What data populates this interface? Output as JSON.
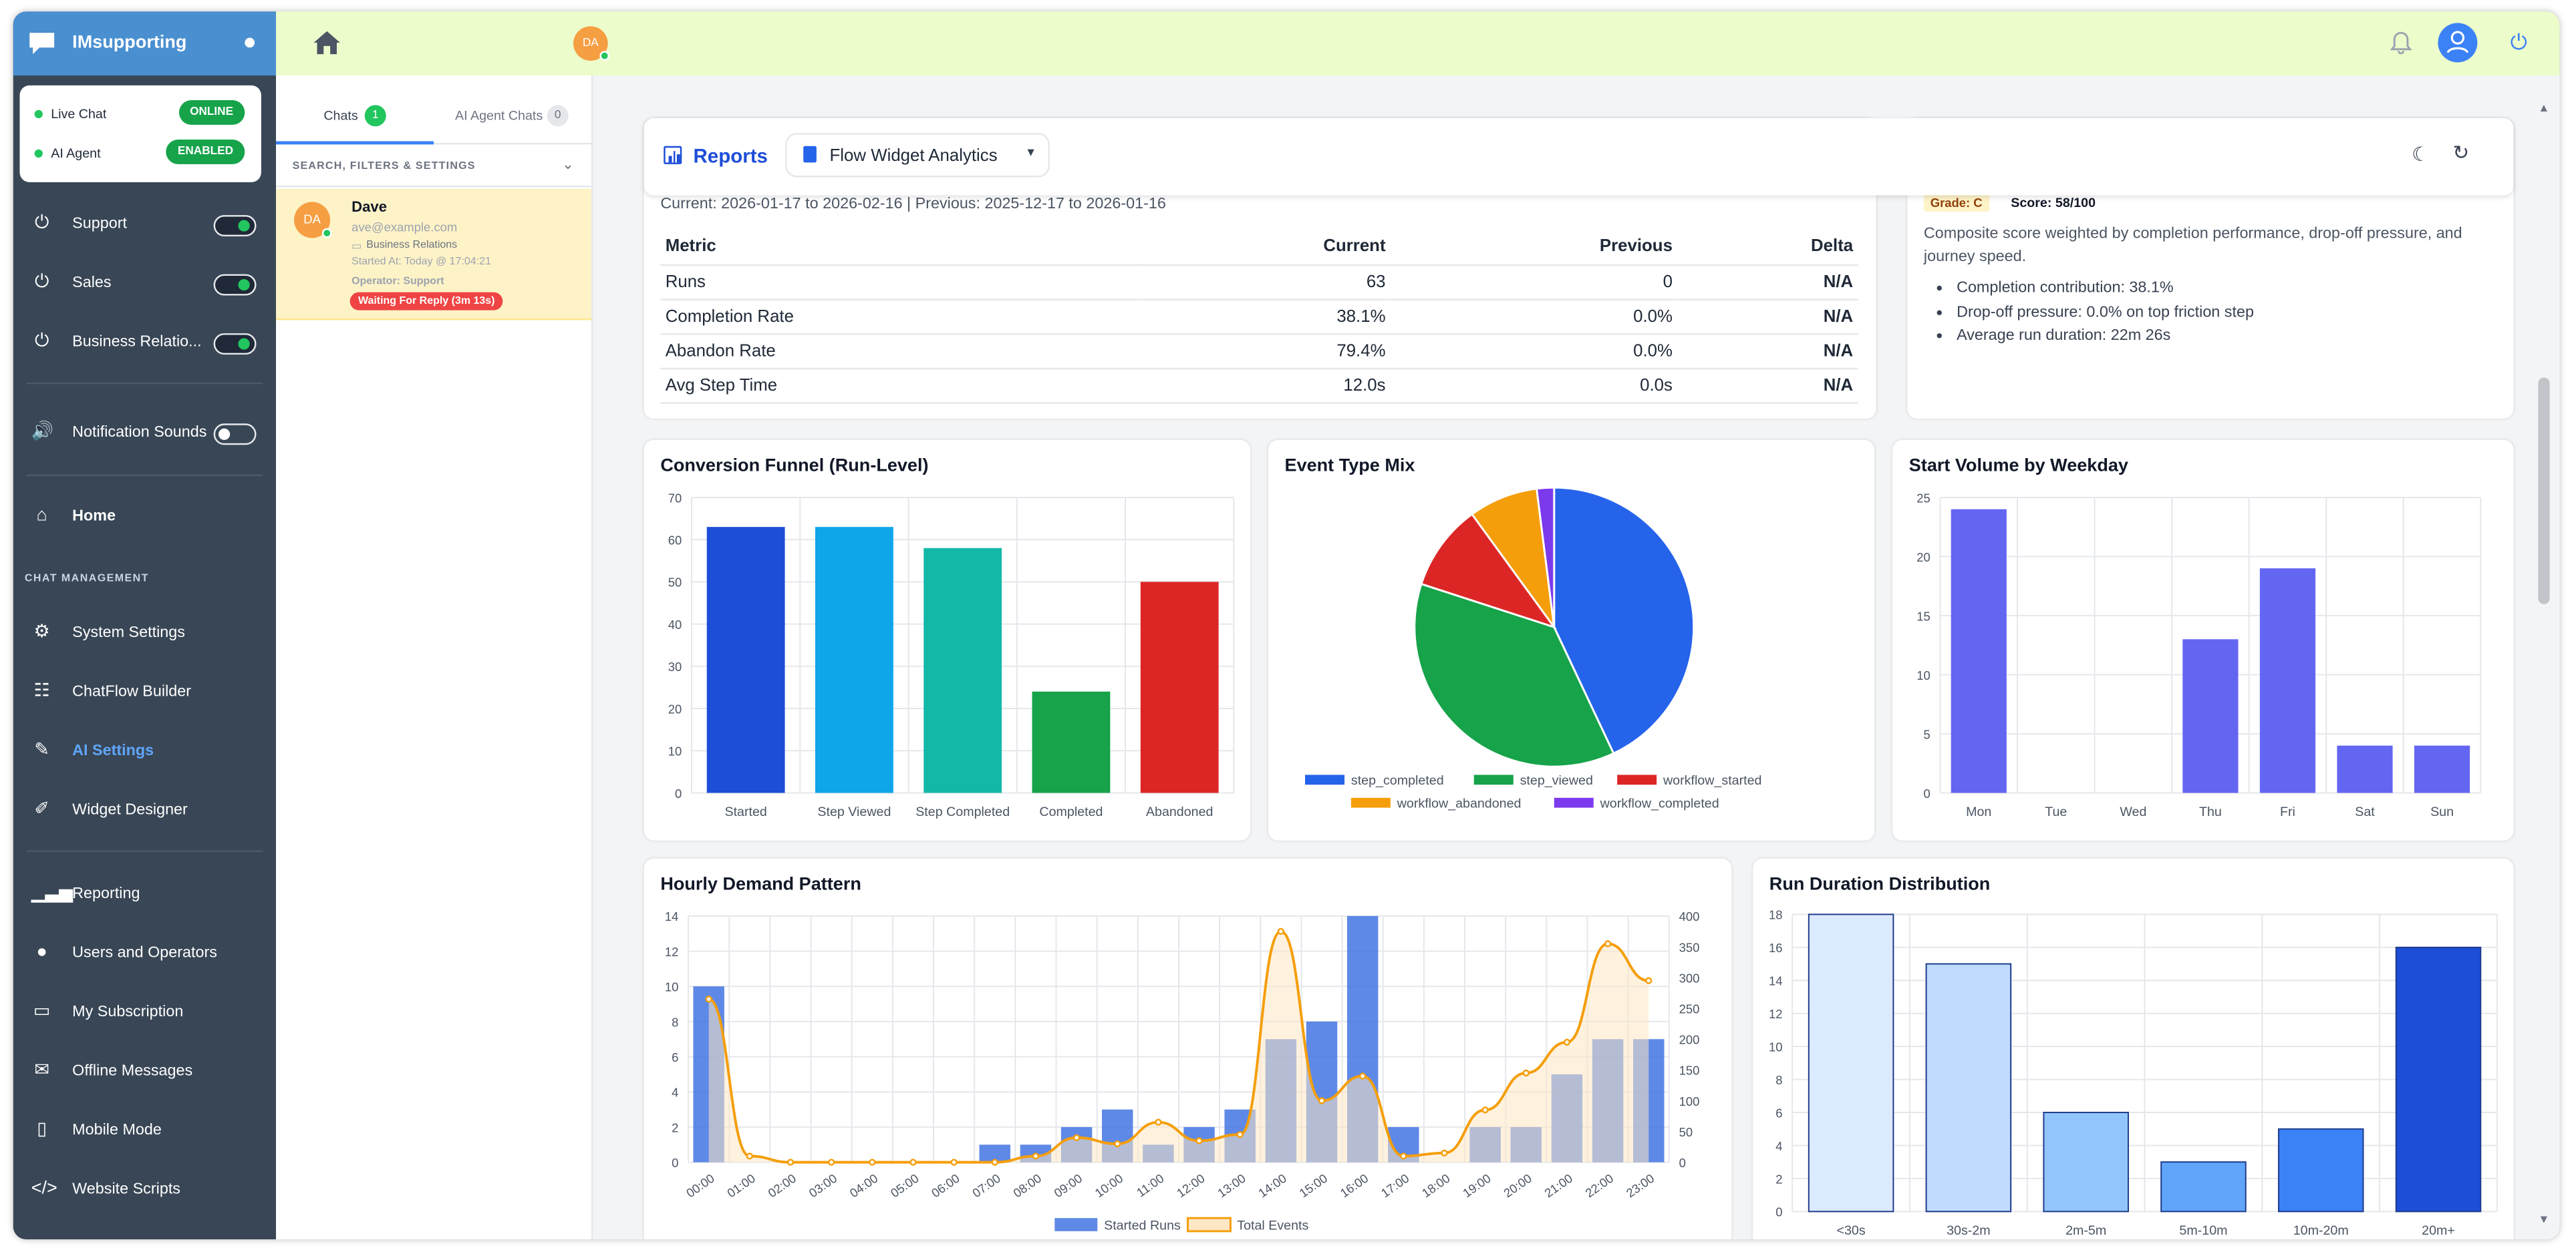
{
  "app": {
    "name": "IMsupporting"
  },
  "status": {
    "live_chat": {
      "label": "Live Chat",
      "badge": "ONLINE"
    },
    "ai_agent": {
      "label": "AI Agent",
      "badge": "ENABLED"
    }
  },
  "toggles": [
    {
      "label": "Support",
      "on": true
    },
    {
      "label": "Sales",
      "on": true
    },
    {
      "label": "Business Relatio...",
      "on": true
    }
  ],
  "notification": {
    "label": "Notification Sounds",
    "on": false
  },
  "nav": {
    "home": "Home",
    "section_label": "CHAT MANAGEMENT",
    "items": [
      "System Settings",
      "ChatFlow Builder",
      "AI Settings",
      "Widget Designer"
    ],
    "items2": [
      "Reporting",
      "Users and Operators",
      "My Subscription",
      "Offline Messages",
      "Mobile Mode",
      "Website Scripts"
    ]
  },
  "topbar": {
    "avatar": "DA"
  },
  "chats": {
    "tab_chats": "Chats",
    "tab_chats_count": "1",
    "tab_ai": "AI Agent Chats",
    "tab_ai_count": "0",
    "filters": "SEARCH, FILTERS & SETTINGS",
    "item": {
      "avatar": "DA",
      "name": "Dave",
      "email": "ave@example.com",
      "dept": "Business Relations",
      "started": "Started At: Today @ 17:04:21",
      "operator": "Operator: Support",
      "waiting": "Waiting For Reply (3m 13s)"
    }
  },
  "reports": {
    "title": "Reports",
    "dropdown": "Flow Widget Analytics",
    "period": "Current: 2026-01-17 to 2026-02-16 | Previous: 2025-12-17 to 2026-01-16",
    "table": {
      "headers": [
        "Metric",
        "Current",
        "Previous",
        "Delta"
      ],
      "rows": [
        [
          "Runs",
          "63",
          "0",
          "N/A"
        ],
        [
          "Completion Rate",
          "38.1%",
          "0.0%",
          "N/A"
        ],
        [
          "Abandon Rate",
          "79.4%",
          "0.0%",
          "N/A"
        ],
        [
          "Avg Step Time",
          "12.0s",
          "0.0s",
          "N/A"
        ]
      ]
    },
    "score": {
      "grade": "Grade: C",
      "score": "Score: 58/100",
      "description": "Composite score weighted by completion performance, drop-off pressure, and journey speed.",
      "bullets": [
        "Completion contribution: 38.1%",
        "Drop-off pressure: 0.0% on top friction step",
        "Average run duration: 22m 26s"
      ]
    }
  },
  "chart_data": [
    {
      "type": "bar",
      "title": "Conversion Funnel (Run-Level)",
      "categories": [
        "Started",
        "Step Viewed",
        "Step Completed",
        "Completed",
        "Abandoned"
      ],
      "values": [
        63,
        63,
        58,
        24,
        50
      ],
      "colors": [
        "#1d4ed8",
        "#0ea5e9",
        "#14b8a6",
        "#16a34a",
        "#dc2626"
      ],
      "ylim": [
        0,
        70
      ],
      "yticks": [
        0,
        10,
        20,
        30,
        40,
        50,
        60,
        70
      ],
      "grid": true
    },
    {
      "type": "pie",
      "title": "Event Type Mix",
      "labels": [
        "step_completed",
        "step_viewed",
        "workflow_started",
        "workflow_abandoned",
        "workflow_completed"
      ],
      "values": [
        43,
        37,
        10,
        8,
        2
      ],
      "colors": [
        "#2563eb",
        "#16a34a",
        "#dc2626",
        "#f59e0b",
        "#7c3aed"
      ],
      "legend": "bottom"
    },
    {
      "type": "bar",
      "title": "Start Volume by Weekday",
      "categories": [
        "Mon",
        "Tue",
        "Wed",
        "Thu",
        "Fri",
        "Sat",
        "Sun"
      ],
      "values": [
        24,
        0,
        0,
        13,
        19,
        4,
        4
      ],
      "color": "#6366f1",
      "ylim": [
        0,
        25
      ],
      "yticks": [
        0,
        5,
        10,
        15,
        20,
        25
      ],
      "grid": true
    },
    {
      "type": "bar",
      "title": "Hourly Demand Pattern",
      "categories": [
        "00:00",
        "01:00",
        "02:00",
        "03:00",
        "04:00",
        "05:00",
        "06:00",
        "07:00",
        "08:00",
        "09:00",
        "10:00",
        "11:00",
        "12:00",
        "13:00",
        "14:00",
        "15:00",
        "16:00",
        "17:00",
        "18:00",
        "19:00",
        "20:00",
        "21:00",
        "22:00",
        "23:00"
      ],
      "series": [
        {
          "name": "Started Runs",
          "type": "bar",
          "axis": "left",
          "color": "#3b6fe0",
          "values": [
            10,
            0,
            0,
            0,
            0,
            0,
            0,
            1,
            1,
            2,
            3,
            1,
            2,
            3,
            7,
            8,
            14,
            2,
            0,
            2,
            2,
            5,
            7,
            7
          ]
        },
        {
          "name": "Total Events",
          "type": "area",
          "axis": "right",
          "color": "#f59e0b",
          "values": [
            265,
            10,
            0,
            0,
            0,
            0,
            0,
            0,
            10,
            40,
            30,
            65,
            35,
            45,
            375,
            100,
            140,
            10,
            15,
            85,
            145,
            195,
            355,
            295
          ]
        }
      ],
      "ylim": [
        0,
        14
      ],
      "yticks": [
        0,
        2,
        4,
        6,
        8,
        10,
        12,
        14
      ],
      "y2lim": [
        0,
        400
      ],
      "y2ticks": [
        0,
        50,
        100,
        150,
        200,
        250,
        300,
        350,
        400
      ],
      "legend": "bottom",
      "grid": true
    },
    {
      "type": "bar",
      "title": "Run Duration Distribution",
      "categories": [
        "<30s",
        "30s-2m",
        "2m-5m",
        "5m-10m",
        "10m-20m",
        "20m+"
      ],
      "values": [
        18,
        15,
        6,
        3,
        5,
        16
      ],
      "colors": [
        "#dbeafe",
        "#bfdbfe",
        "#93c5fd",
        "#60a5fa",
        "#3b82f6",
        "#1d4ed8"
      ],
      "ylim": [
        0,
        18
      ],
      "yticks": [
        0,
        2,
        4,
        6,
        8,
        10,
        12,
        14,
        16,
        18
      ],
      "grid": true
    }
  ]
}
